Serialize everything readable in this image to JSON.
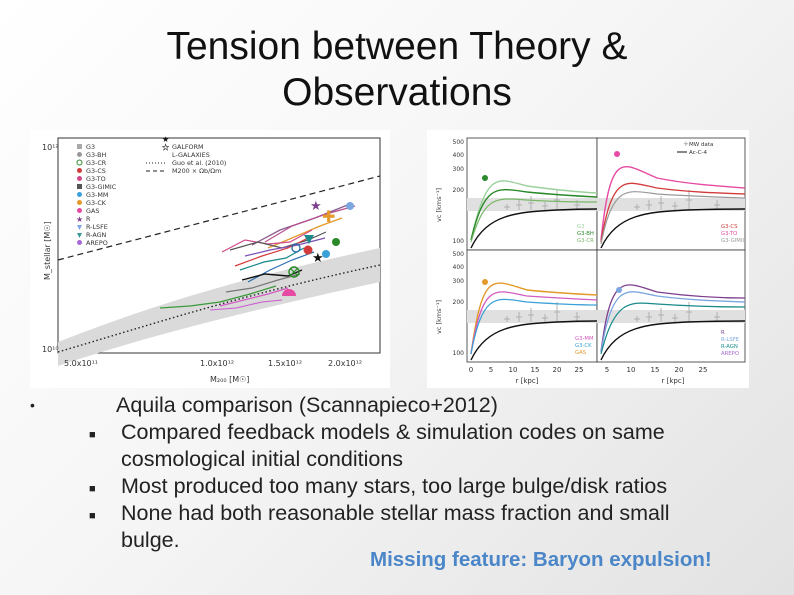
{
  "slide": {
    "title_line1": "Tension between Theory &",
    "title_line2": "Observations",
    "accent_color": "#4a86c8"
  },
  "left_plot": {
    "y_label": "M_stellar [M☉]",
    "y_tick_top": "10¹²",
    "y_tick_bottom": "10¹⁰",
    "x_ticks": [
      "5.0x10¹¹",
      "1.0x10¹²",
      "1.5x10¹²",
      "2.0x10¹²"
    ],
    "x_label": "M₂₀₀ [M☉]",
    "legend_codes": [
      "G3",
      "G3-BH",
      "G3-CR",
      "G3-CS",
      "G3-TO",
      "G3-GIMIC",
      "G3-MM",
      "G3-CK",
      "GAS",
      "R",
      "R-LSFE",
      "R-AGN",
      "AREPO"
    ],
    "legend_models": [
      "GALFORM",
      "L-GALAXIES",
      "Guo et al. (2010)",
      "M200 × Ωb/Ωm"
    ]
  },
  "right_plot": {
    "y_label": "vc [kms⁻¹]",
    "y_ticks": [
      "500",
      "400",
      "300",
      "200",
      "100"
    ],
    "x_ticks": [
      "0",
      "5",
      "10",
      "15",
      "20",
      "25"
    ],
    "x_label": "r [kpc]",
    "legend": [
      "MW data",
      "Ac-C-4"
    ],
    "panel_labels": [
      [
        "G3",
        "G3-BH",
        "G3-CR"
      ],
      [
        "G3-CS",
        "G3-TO",
        "G3-GIMIC"
      ],
      [
        "G3-MM",
        "G3-CK",
        "GAS"
      ],
      [
        "R",
        "R-LSFE",
        "R-AGN",
        "AREPO"
      ]
    ]
  },
  "bullets": {
    "main": "Aquila comparison (Scannapieco+2012)",
    "sub1_line1": "Compared feedback models & simulation codes on same",
    "sub1_line2": "cosmological initial conditions",
    "sub2": "Most produced too many stars, too large bulge/disk ratios",
    "sub3_line1": "None had both reasonable stellar mass fraction and small",
    "sub3_line2": "bulge.",
    "highlight": "Missing feature: Baryon expulsion!"
  }
}
